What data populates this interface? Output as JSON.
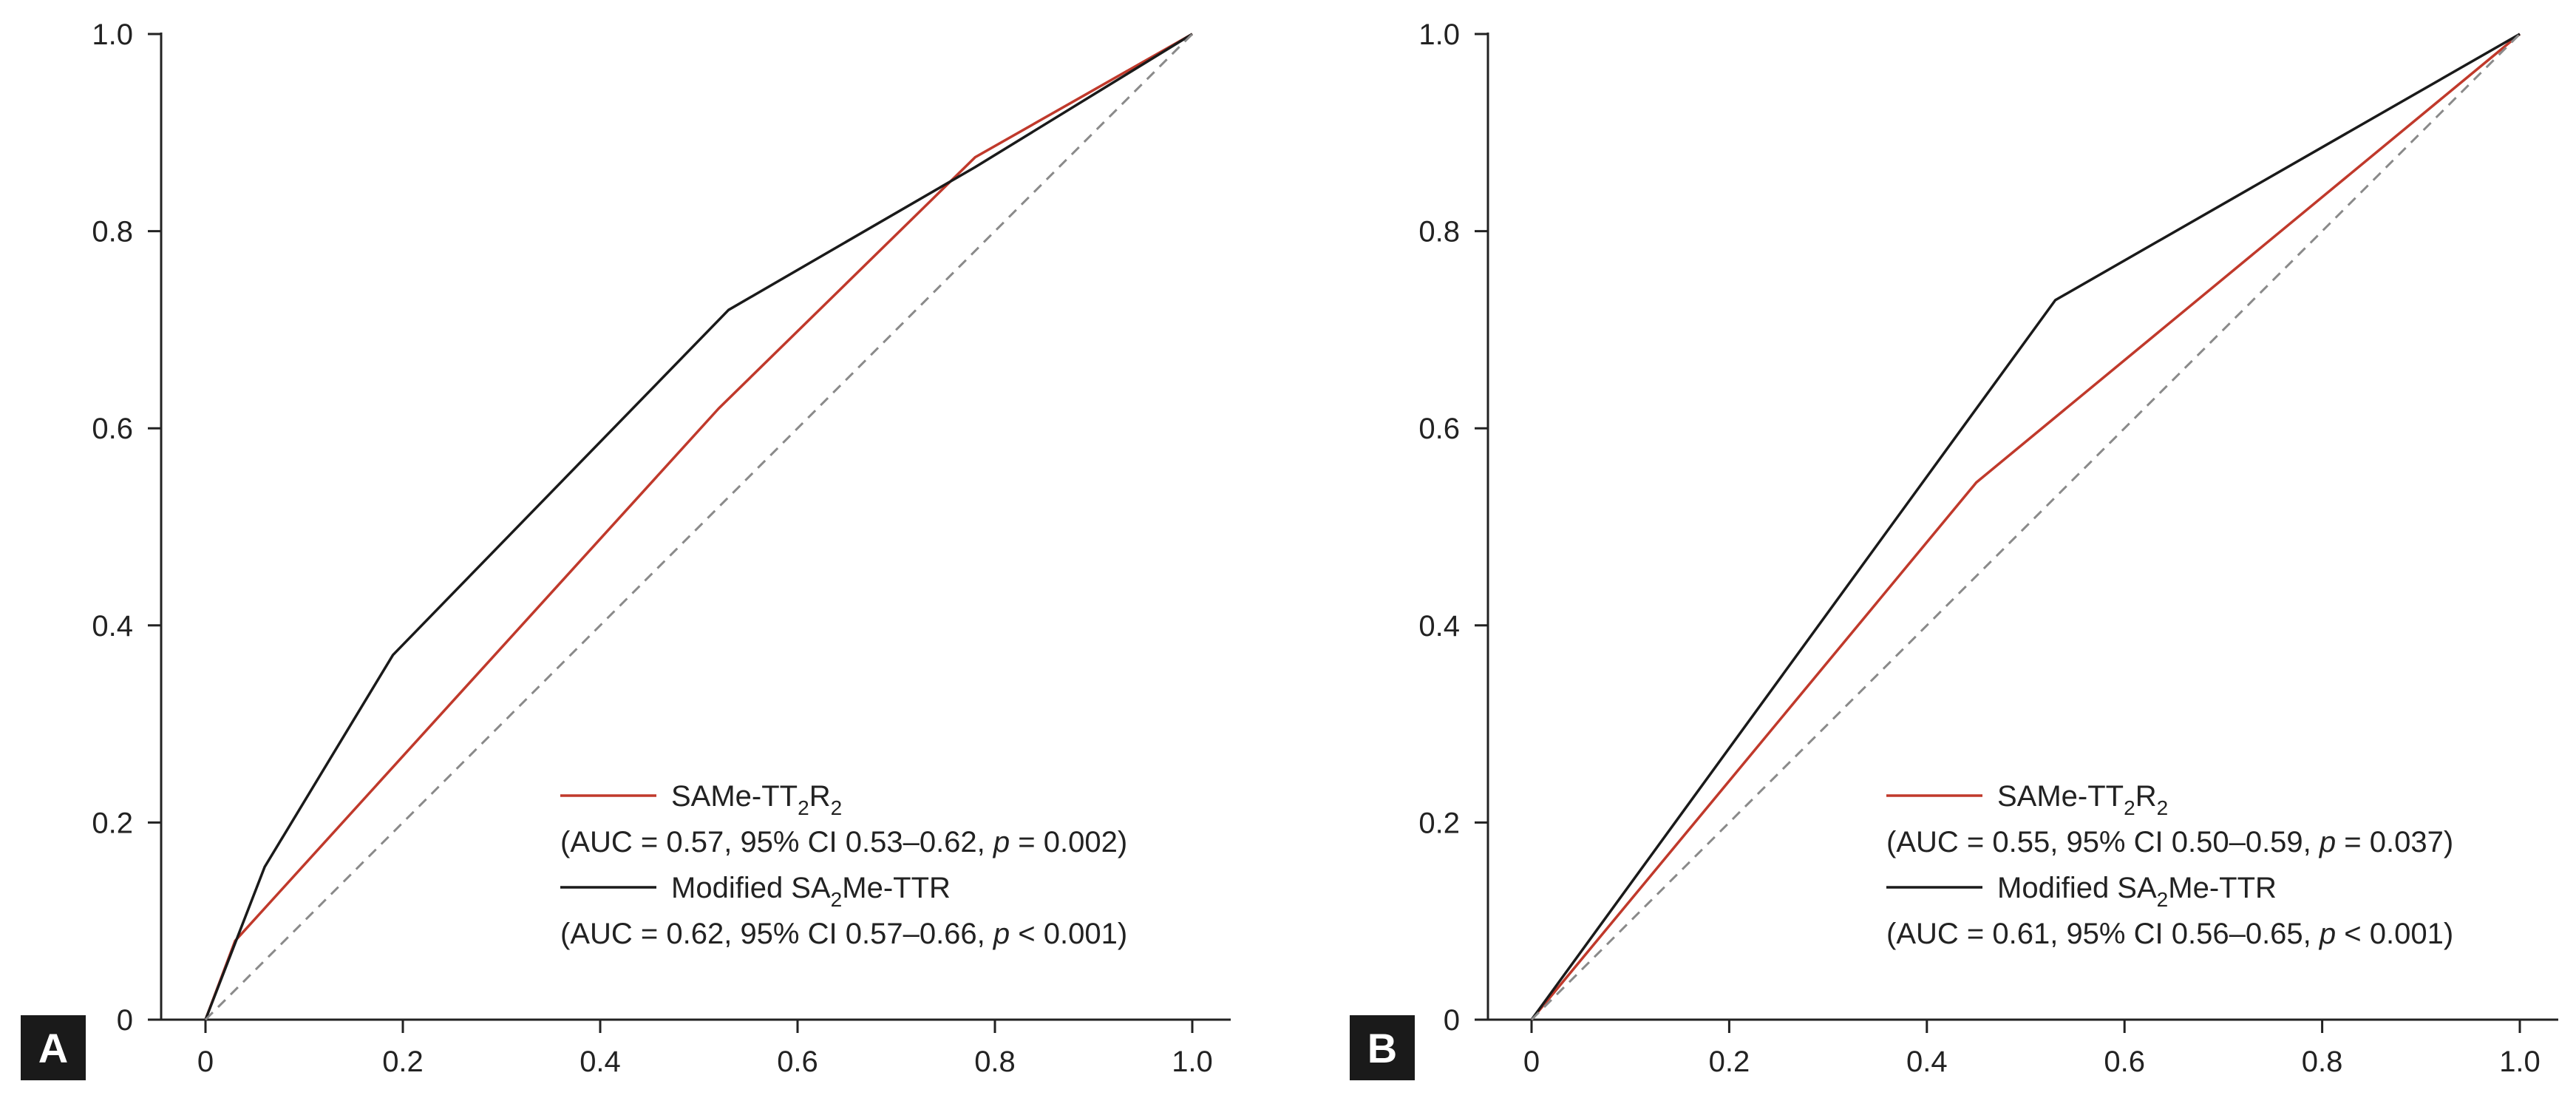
{
  "colors": {
    "red": "#c0392b",
    "black": "#1a1a1a",
    "reference": "#8a8a8a",
    "axis": "#222222",
    "badge_bg": "#1a1a1a"
  },
  "chart_data": [
    {
      "type": "line",
      "panel_label": "A",
      "title": "",
      "xlabel": "",
      "ylabel": "",
      "xlim": [
        0,
        1
      ],
      "ylim": [
        0,
        1
      ],
      "x_ticks": [
        "0",
        "0.2",
        "0.4",
        "0.6",
        "0.8",
        "1.0"
      ],
      "y_ticks": [
        "0",
        "0.2",
        "0.4",
        "0.6",
        "0.8",
        "1.0"
      ],
      "grid": false,
      "legend_position": "bottom-right",
      "series": [
        {
          "name": "SAMe-TT₂R₂",
          "detail": "(AUC = 0.57, 95% CI 0.53–0.62, p = 0.002)",
          "color": "#c0392b",
          "x": [
            0,
            0.03,
            0.52,
            0.78,
            1.0
          ],
          "y": [
            0,
            0.08,
            0.62,
            0.875,
            1.0
          ]
        },
        {
          "name": "Modified SA₂Me-TTR",
          "detail": "(AUC = 0.62, 95% CI 0.57–0.66, p < 0.001)",
          "color": "#1a1a1a",
          "x": [
            0,
            0.06,
            0.19,
            0.53,
            0.78,
            1.0
          ],
          "y": [
            0,
            0.155,
            0.37,
            0.72,
            0.865,
            1.0
          ]
        },
        {
          "name": "",
          "color": "#8a8a8a",
          "dashed": true,
          "x": [
            0,
            1
          ],
          "y": [
            0,
            1
          ]
        }
      ]
    },
    {
      "type": "line",
      "panel_label": "B",
      "title": "",
      "xlabel": "",
      "ylabel": "",
      "xlim": [
        0,
        1
      ],
      "ylim": [
        0,
        1
      ],
      "x_ticks": [
        "0",
        "0.2",
        "0.4",
        "0.6",
        "0.8",
        "1.0"
      ],
      "y_ticks": [
        "0",
        "0.2",
        "0.4",
        "0.6",
        "0.8",
        "1.0"
      ],
      "grid": false,
      "legend_position": "bottom-right",
      "series": [
        {
          "name": "SAMe-TT₂R₂",
          "detail": "(AUC = 0.55, 95% CI 0.50–0.59, p = 0.037)",
          "color": "#c0392b",
          "x": [
            0,
            0.45,
            1.0
          ],
          "y": [
            0,
            0.545,
            1.0
          ]
        },
        {
          "name": "Modified SA₂Me-TTR",
          "detail": "(AUC = 0.61, 95% CI 0.56–0.65, p < 0.001)",
          "color": "#1a1a1a",
          "x": [
            0,
            0.53,
            1.0
          ],
          "y": [
            0,
            0.73,
            1.0
          ]
        },
        {
          "name": "",
          "color": "#8a8a8a",
          "dashed": true,
          "x": [
            0,
            1
          ],
          "y": [
            0,
            1
          ]
        }
      ]
    }
  ]
}
